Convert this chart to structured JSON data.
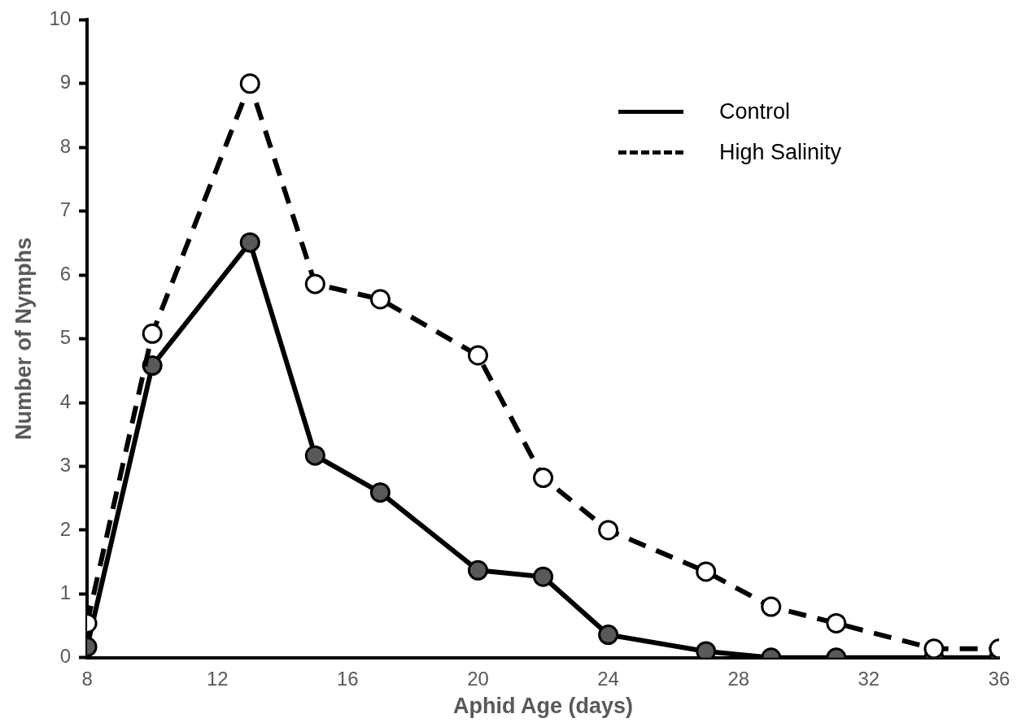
{
  "chart_data": {
    "type": "line",
    "xlabel": "Aphid Age (days)",
    "ylabel": "Number of Nymphs",
    "x": [
      8,
      10,
      13,
      15,
      17,
      20,
      22,
      24,
      27,
      29,
      31,
      34,
      36
    ],
    "series": [
      {
        "name": "Control",
        "color": "#000000",
        "line_style": "solid",
        "values": [
          0.17,
          4.58,
          6.51,
          3.17,
          2.59,
          1.37,
          1.27,
          0.36,
          0.1,
          0,
          0,
          0,
          0
        ]
      },
      {
        "name": "High Salinity",
        "color": "#000000",
        "line_style": "dashed",
        "values": [
          0.54,
          5.08,
          9.0,
          5.86,
          5.62,
          4.74,
          2.82,
          2.0,
          1.35,
          0.8,
          0.54,
          0.14,
          0.14
        ]
      }
    ],
    "xlim": [
      8,
      36
    ],
    "xticks": [
      8,
      12,
      16,
      20,
      24,
      28,
      32,
      36
    ],
    "ylim": [
      0,
      10
    ],
    "yticks": [
      0,
      1,
      2,
      3,
      4,
      5,
      6,
      7,
      8,
      9,
      10
    ],
    "grid": false,
    "legend": "top right",
    "marker": "circle"
  }
}
